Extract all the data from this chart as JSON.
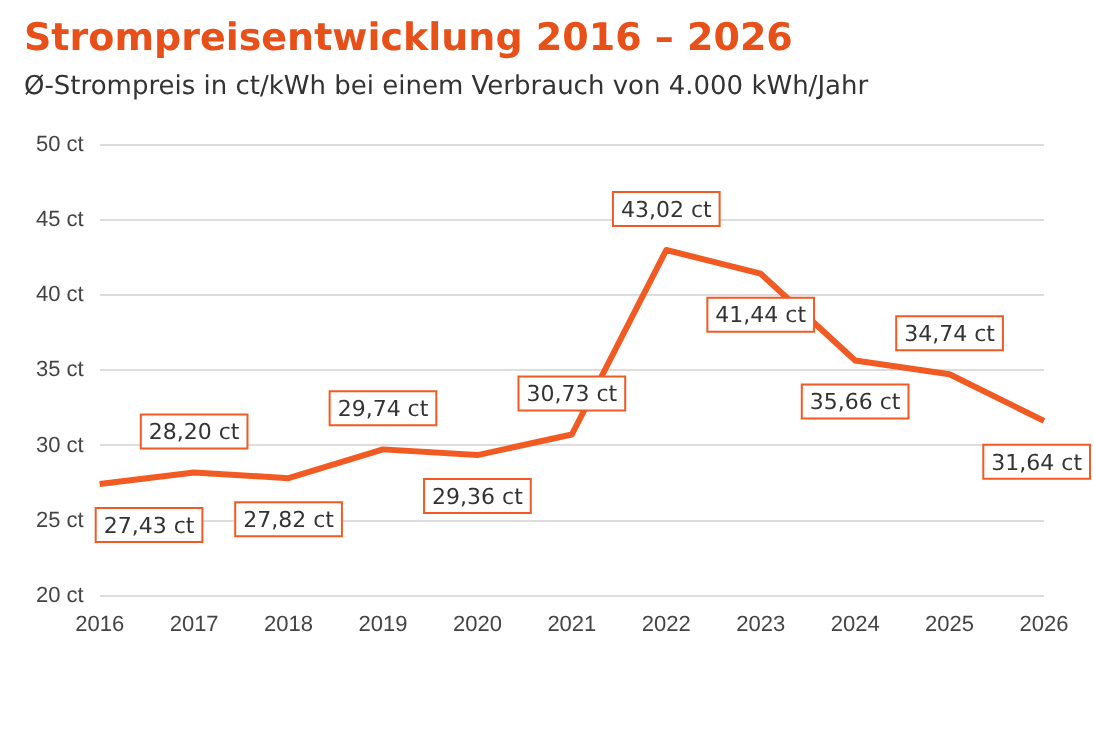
{
  "chart_data": {
    "type": "line",
    "title": "Strompreisentwicklung 2016 – 2026",
    "subtitle": "Ø-Strompreis in ct/kWh bei einem Verbrauch von 4.000 kWh/Jahr",
    "categories": [
      "2016",
      "2017",
      "2018",
      "2019",
      "2020",
      "2021",
      "2022",
      "2023",
      "2024",
      "2025",
      "2026"
    ],
    "series": [
      {
        "color": "#f15a22",
        "values": [
          27.43,
          28.2,
          27.82,
          29.74,
          29.36,
          30.73,
          43.02,
          41.44,
          35.66,
          34.74,
          31.64
        ],
        "value_labels": [
          "27,43 ct",
          "28,20 ct",
          "27,82 ct",
          "29,74 ct",
          "29,36 ct",
          "30,73 ct",
          "43,02 ct",
          "41,44 ct",
          "35,66 ct",
          "34,74 ct",
          "31,64 ct"
        ]
      }
    ],
    "ylim": [
      20,
      50
    ],
    "yticks": [
      {
        "value": 20,
        "label": "20 ct"
      },
      {
        "value": 25,
        "label": "25 ct"
      },
      {
        "value": 30,
        "label": "30 ct"
      },
      {
        "value": 35,
        "label": "35 ct"
      },
      {
        "value": 40,
        "label": "40 ct"
      },
      {
        "value": 45,
        "label": "45 ct"
      },
      {
        "value": 50,
        "label": "50 ct"
      }
    ],
    "grid": "y",
    "legend": false,
    "marker": "none",
    "line_style": "solid"
  }
}
